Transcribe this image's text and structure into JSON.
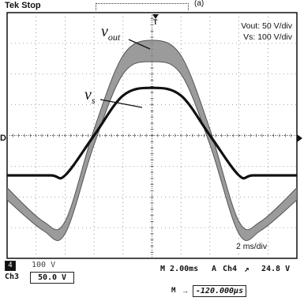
{
  "header": {
    "status": "Tek Stop",
    "figure_tag": "(a)",
    "trigger_marker": "T"
  },
  "scale_box": {
    "line1": "Vout: 50 V/div",
    "line2": "Vs: 100 V/div"
  },
  "trace_labels": {
    "vout_main": "v",
    "vout_sub": "out",
    "vs_main": "v",
    "vs_sub": "s"
  },
  "timebase_note": "2 ms/div",
  "ground_markers": {
    "left": "D"
  },
  "readouts": {
    "ch_a_tag": "4",
    "ch_a_value": "100 V",
    "ch3_tag": "Ch3",
    "ch3_value": "50.0 V",
    "horizontal": "M 2.00ms",
    "trigger_mode": "A",
    "trigger_channel": "Ch4",
    "trigger_slope": "↗",
    "trigger_level": "24.8 V",
    "delay_prefix": "M",
    "delay_value": "-120.000μs"
  },
  "colors": {
    "trace": "#111111",
    "envelope": "#8a8a8a",
    "grid": "#555555"
  },
  "chart_data": {
    "type": "line",
    "title": "",
    "xlabel": "",
    "ylabel": "",
    "x_unit": "ms",
    "xlim": [
      -10,
      10
    ],
    "ylim": [
      -4,
      4
    ],
    "y_unit": "div",
    "grid": true,
    "series": [
      {
        "name": "v_s",
        "scale": "100 V/div",
        "x": [
          -10,
          -7,
          -6,
          -4,
          -2,
          0,
          2,
          4,
          6,
          7,
          10
        ],
        "y": [
          -1.3,
          -1.3,
          -1.3,
          0.0,
          1.3,
          1.55,
          1.3,
          0.0,
          -1.3,
          -1.3,
          -1.3
        ]
      },
      {
        "name": "v_out",
        "scale": "50 V/div",
        "x": [
          -10,
          -7.5,
          -6,
          -4,
          -2,
          0,
          2,
          4,
          6,
          7.5,
          10
        ],
        "y_upper": [
          -1.7,
          -2.8,
          -2.8,
          0.2,
          2.6,
          3.1,
          2.6,
          0.2,
          -2.8,
          -2.8,
          -1.7
        ],
        "y_lower": [
          -2.1,
          -3.1,
          -3.2,
          -0.3,
          2.0,
          2.4,
          2.0,
          -0.3,
          -3.2,
          -3.1,
          -2.1
        ]
      }
    ]
  }
}
